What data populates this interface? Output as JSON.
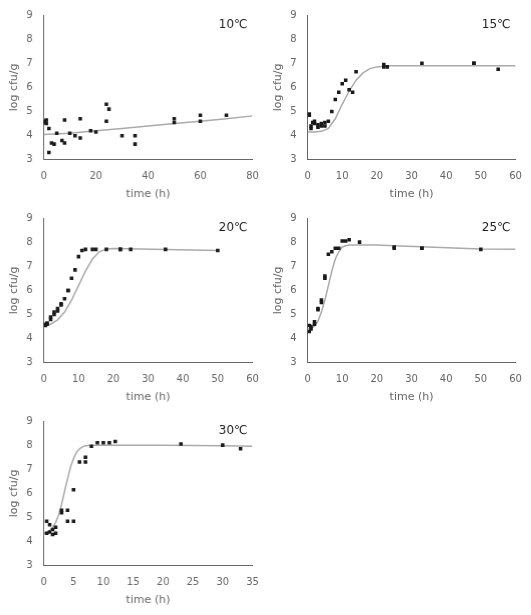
{
  "chart_data": [
    {
      "type": "line",
      "annotation": "10℃",
      "xlabel": "time (h)",
      "ylabel": "log cfu/g",
      "grid": false,
      "xlim": [
        0,
        80
      ],
      "ylim": [
        3,
        9
      ],
      "xticks": [
        0,
        20,
        40,
        60,
        80
      ],
      "yticks": [
        3,
        4,
        5,
        6,
        7,
        8,
        9
      ],
      "series": [
        {
          "type": "line",
          "color": "#aaaaaa",
          "line_style": "solid",
          "x": [
            0,
            10,
            20,
            30,
            40,
            50,
            60,
            70,
            80
          ],
          "values": [
            4.05,
            4.1,
            4.2,
            4.3,
            4.4,
            4.5,
            4.6,
            4.7,
            4.82
          ]
        },
        {
          "type": "scatter",
          "color": "#1a1a1a",
          "marker": "square",
          "x": [
            0.5,
            0.5,
            1,
            1,
            2,
            2,
            3,
            4,
            5,
            7,
            8,
            8,
            10,
            12,
            14,
            14,
            18,
            20,
            24,
            24,
            25,
            30,
            35,
            35,
            50,
            50,
            60,
            60,
            70
          ],
          "values": [
            4.55,
            4.6,
            4.5,
            4.65,
            3.3,
            4.3,
            3.7,
            3.65,
            4.1,
            3.8,
            3.7,
            4.65,
            4.1,
            4.0,
            3.9,
            4.7,
            4.2,
            4.15,
            5.3,
            4.6,
            5.1,
            4.0,
            3.65,
            4.0,
            4.7,
            4.55,
            4.6,
            4.85,
            4.85
          ]
        }
      ]
    },
    {
      "type": "line",
      "annotation": "15℃",
      "xlabel": "time (h)",
      "ylabel": "log cfu/g",
      "grid": false,
      "xlim": [
        0,
        60
      ],
      "ylim": [
        3,
        9
      ],
      "xticks": [
        0,
        10,
        20,
        30,
        40,
        50,
        60
      ],
      "yticks": [
        3,
        4,
        5,
        6,
        7,
        8,
        9
      ],
      "series": [
        {
          "type": "line",
          "color": "#aaaaaa",
          "line_style": "solid",
          "x": [
            0,
            2,
            4,
            6,
            8,
            10,
            12,
            14,
            16,
            18,
            20,
            22,
            24,
            30,
            40,
            50,
            60
          ],
          "values": [
            4.15,
            4.15,
            4.18,
            4.3,
            4.7,
            5.3,
            5.85,
            6.3,
            6.6,
            6.78,
            6.85,
            6.88,
            6.9,
            6.9,
            6.9,
            6.9,
            6.9
          ]
        },
        {
          "type": "scatter",
          "color": "#1a1a1a",
          "marker": "square",
          "x": [
            0.5,
            0.5,
            1,
            1,
            1.5,
            2,
            2,
            3,
            3,
            4,
            4,
            5,
            5,
            6,
            7,
            8,
            9,
            10,
            11,
            12,
            13,
            14,
            22,
            22,
            23,
            33,
            48,
            48,
            55
          ],
          "values": [
            4.9,
            4.85,
            4.3,
            4.4,
            4.55,
            4.6,
            4.5,
            4.35,
            4.45,
            4.4,
            4.5,
            4.4,
            4.55,
            4.6,
            5.0,
            5.5,
            5.8,
            6.15,
            6.3,
            5.9,
            5.8,
            6.65,
            6.85,
            6.95,
            6.85,
            7.0,
            7.0,
            7.0,
            6.75
          ]
        }
      ]
    },
    {
      "type": "line",
      "annotation": "20℃",
      "xlabel": "time (h)",
      "ylabel": "log cfu/g",
      "grid": false,
      "xlim": [
        0,
        60
      ],
      "ylim": [
        3,
        9
      ],
      "xticks": [
        0,
        10,
        20,
        30,
        40,
        50,
        60
      ],
      "yticks": [
        3,
        4,
        5,
        6,
        7,
        8,
        9
      ],
      "series": [
        {
          "type": "line",
          "color": "#aaaaaa",
          "line_style": "solid",
          "x": [
            0,
            2,
            4,
            6,
            8,
            10,
            12,
            14,
            16,
            18,
            20,
            50
          ],
          "values": [
            4.55,
            4.6,
            4.78,
            5.1,
            5.6,
            6.2,
            6.8,
            7.3,
            7.6,
            7.72,
            7.74,
            7.65
          ]
        },
        {
          "type": "scatter",
          "color": "#1a1a1a",
          "marker": "square",
          "x": [
            0.5,
            0.5,
            1,
            1,
            2,
            2,
            3,
            3,
            4,
            4,
            5,
            5,
            6,
            7,
            7,
            8,
            9,
            10,
            11,
            12,
            14,
            15,
            18,
            22,
            22,
            25,
            35,
            50
          ],
          "values": [
            4.55,
            4.6,
            4.6,
            4.65,
            4.8,
            4.9,
            5.0,
            5.1,
            5.15,
            5.25,
            5.4,
            5.45,
            5.65,
            6.0,
            6.0,
            6.5,
            6.85,
            7.4,
            7.65,
            7.7,
            7.7,
            7.7,
            7.7,
            7.7,
            7.7,
            7.7,
            7.7,
            7.65
          ]
        }
      ]
    },
    {
      "type": "line",
      "annotation": "25℃",
      "xlabel": "time (h)",
      "ylabel": "log cfu/g",
      "grid": false,
      "xlim": [
        0,
        60
      ],
      "ylim": [
        3,
        9
      ],
      "xticks": [
        0,
        10,
        20,
        30,
        40,
        50,
        60
      ],
      "yticks": [
        3,
        4,
        5,
        6,
        7,
        8,
        9
      ],
      "series": [
        {
          "type": "line",
          "color": "#aaaaaa",
          "line_style": "solid",
          "x": [
            0,
            1,
            2,
            3,
            4,
            5,
            6,
            7,
            8,
            9,
            10,
            11,
            12,
            15,
            20,
            25,
            50,
            60
          ],
          "values": [
            4.4,
            4.42,
            4.52,
            4.72,
            5.1,
            5.6,
            6.2,
            6.8,
            7.3,
            7.6,
            7.8,
            7.85,
            7.88,
            7.88,
            7.88,
            7.85,
            7.72,
            7.7
          ]
        },
        {
          "type": "scatter",
          "color": "#1a1a1a",
          "marker": "square",
          "x": [
            0.5,
            0.5,
            1,
            1,
            2,
            2,
            3,
            3,
            4,
            4,
            5,
            5,
            6,
            7,
            8,
            9,
            10,
            11,
            12,
            15,
            25,
            25,
            33,
            33,
            50
          ],
          "values": [
            4.55,
            4.3,
            4.4,
            4.5,
            4.6,
            4.7,
            5.2,
            5.25,
            5.5,
            5.6,
            6.5,
            6.6,
            7.5,
            7.6,
            7.75,
            7.75,
            8.05,
            8.05,
            8.1,
            8.0,
            7.75,
            7.8,
            7.75,
            7.75,
            7.7
          ]
        }
      ]
    },
    {
      "type": "line",
      "annotation": "30℃",
      "xlabel": "time (h)",
      "ylabel": "log cfu/g",
      "grid": false,
      "xlim": [
        0,
        35
      ],
      "ylim": [
        3,
        9
      ],
      "xticks": [
        0,
        5,
        10,
        15,
        20,
        25,
        30,
        35
      ],
      "yticks": [
        3,
        4,
        5,
        6,
        7,
        8,
        9
      ],
      "series": [
        {
          "type": "line",
          "color": "#aaaaaa",
          "line_style": "solid",
          "x": [
            0,
            0.5,
            1,
            1.5,
            2,
            2.5,
            3,
            3.5,
            4,
            4.5,
            5,
            5.5,
            6,
            6.5,
            7,
            7.5,
            8,
            9,
            10,
            12,
            15,
            20,
            30,
            35
          ],
          "values": [
            4.35,
            4.38,
            4.45,
            4.58,
            4.8,
            5.1,
            5.55,
            6.1,
            6.6,
            7.1,
            7.45,
            7.7,
            7.85,
            7.93,
            7.97,
            7.98,
            7.99,
            8.0,
            8.0,
            8.0,
            8.0,
            8.0,
            7.97,
            7.95
          ]
        },
        {
          "type": "scatter",
          "color": "#1a1a1a",
          "marker": "square",
          "x": [
            0.5,
            0.5,
            1,
            1,
            1.5,
            1.5,
            2,
            2,
            3,
            3,
            4,
            4,
            5,
            5,
            6,
            7,
            7,
            8,
            9,
            10,
            11,
            12,
            23,
            30,
            33
          ],
          "values": [
            4.85,
            4.35,
            4.4,
            4.7,
            4.3,
            4.5,
            4.35,
            4.6,
            5.3,
            5.2,
            5.3,
            4.85,
            6.15,
            4.85,
            7.3,
            7.3,
            7.5,
            7.95,
            8.1,
            8.1,
            8.1,
            8.15,
            8.05,
            8.0,
            7.85
          ]
        }
      ]
    }
  ]
}
